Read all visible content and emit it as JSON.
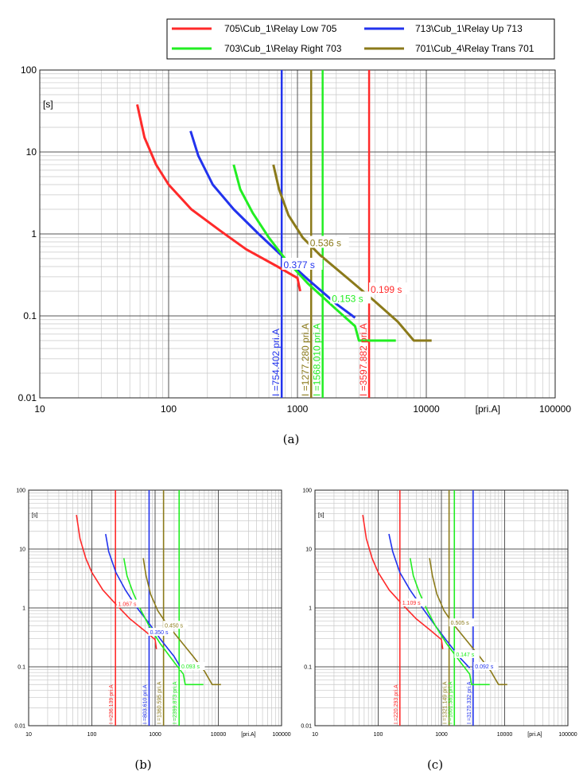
{
  "colors": {
    "red": "#ff2a2a",
    "blue": "#2233ee",
    "green": "#22ee22",
    "olive": "#8b7a1a",
    "grid_major": "#555555",
    "grid_minor": "#c8c8c8"
  },
  "chart_data": [
    {
      "type": "line",
      "caption": "(a)",
      "xscale": "log",
      "yscale": "log",
      "xlim": [
        10,
        100000
      ],
      "ylim": [
        0.01,
        100
      ],
      "xlabel": "[pri.A]",
      "ylabel": "[s]",
      "x_ticks": [
        "10",
        "100",
        "1000",
        "10000",
        "100000"
      ],
      "y_ticks": [
        "0.01",
        "0.1",
        "1",
        "10",
        "100"
      ],
      "legend_position": "top",
      "series": [
        {
          "name": "705\\Cub_1\\Relay Low 705",
          "color": "red",
          "points": [
            [
              57,
              38
            ],
            [
              65,
              15
            ],
            [
              80,
              7
            ],
            [
              100,
              4
            ],
            [
              150,
              2
            ],
            [
              250,
              1.1
            ],
            [
              400,
              0.65
            ],
            [
              700,
              0.4
            ],
            [
              1000,
              0.29
            ],
            [
              1050,
              0.2
            ]
          ]
        },
        {
          "name": "713\\Cub_1\\Relay Up 713",
          "color": "blue",
          "points": [
            [
              148,
              18
            ],
            [
              170,
              9
            ],
            [
              220,
              4
            ],
            [
              320,
              2
            ],
            [
              500,
              1
            ],
            [
              800,
              0.5
            ],
            [
              1200,
              0.28
            ],
            [
              2000,
              0.14
            ],
            [
              2800,
              0.095
            ]
          ]
        },
        {
          "name": "703\\Cub_1\\Relay Right 703",
          "color": "green",
          "points": [
            [
              320,
              7
            ],
            [
              360,
              3.5
            ],
            [
              450,
              1.8
            ],
            [
              600,
              0.9
            ],
            [
              800,
              0.5
            ],
            [
              1200,
              0.25
            ],
            [
              2000,
              0.12
            ],
            [
              2800,
              0.075
            ],
            [
              3000,
              0.05
            ],
            [
              5800,
              0.05
            ]
          ]
        },
        {
          "name": "701\\Cub_4\\Relay Trans 701",
          "color": "olive",
          "points": [
            [
              650,
              7
            ],
            [
              720,
              3.5
            ],
            [
              850,
              1.7
            ],
            [
              1100,
              0.9
            ],
            [
              1500,
              0.55
            ],
            [
              2500,
              0.28
            ],
            [
              4000,
              0.15
            ],
            [
              6000,
              0.085
            ],
            [
              8000,
              0.05
            ],
            [
              11000,
              0.05
            ]
          ]
        }
      ],
      "markers": [
        {
          "x": 754.402,
          "color": "blue",
          "label": "I =754.402 pri.A"
        },
        {
          "x": 1277.28,
          "color": "olive",
          "label": "I =1277.280 pri.A"
        },
        {
          "x": 1568.01,
          "color": "green",
          "label": "I =1568.010 pri.A"
        },
        {
          "x": 3597.882,
          "color": "red",
          "label": "I =3597.882 pri.A"
        }
      ],
      "annotations": [
        {
          "text": "0.536 s",
          "color": "olive",
          "x": 1250,
          "y": 0.74
        },
        {
          "text": "0.377 s",
          "color": "blue",
          "x": 780,
          "y": 0.4
        },
        {
          "text": "0.199 s",
          "color": "red",
          "x": 3700,
          "y": 0.2
        },
        {
          "text": "0.153 s",
          "color": "green",
          "x": 1850,
          "y": 0.155
        }
      ]
    },
    {
      "type": "line",
      "caption": "(b)",
      "xscale": "log",
      "yscale": "log",
      "xlim": [
        10,
        100000
      ],
      "ylim": [
        0.01,
        100
      ],
      "xlabel": "[pri.A]",
      "ylabel": "[s]",
      "x_ticks": [
        "10",
        "100",
        "1000",
        "10000",
        "100000"
      ],
      "y_ticks": [
        "0.01",
        "0.1",
        "1",
        "10",
        "100"
      ],
      "series": [
        {
          "color": "red",
          "points": [
            [
              57,
              38
            ],
            [
              65,
              15
            ],
            [
              80,
              7
            ],
            [
              100,
              4
            ],
            [
              150,
              2
            ],
            [
              250,
              1.1
            ],
            [
              400,
              0.65
            ],
            [
              700,
              0.4
            ],
            [
              1000,
              0.29
            ],
            [
              1050,
              0.2
            ]
          ]
        },
        {
          "color": "blue",
          "points": [
            [
              165,
              18
            ],
            [
              185,
              9
            ],
            [
              240,
              4
            ],
            [
              340,
              2
            ],
            [
              520,
              1
            ],
            [
              800,
              0.55
            ],
            [
              1200,
              0.3
            ],
            [
              2000,
              0.15
            ],
            [
              2500,
              0.1
            ]
          ]
        },
        {
          "color": "green",
          "points": [
            [
              320,
              7
            ],
            [
              360,
              3.5
            ],
            [
              450,
              1.8
            ],
            [
              600,
              0.9
            ],
            [
              800,
              0.5
            ],
            [
              1200,
              0.25
            ],
            [
              2000,
              0.12
            ],
            [
              2800,
              0.075
            ],
            [
              3000,
              0.05
            ],
            [
              5800,
              0.05
            ]
          ]
        },
        {
          "color": "olive",
          "points": [
            [
              650,
              7
            ],
            [
              720,
              3.5
            ],
            [
              850,
              1.7
            ],
            [
              1100,
              0.9
            ],
            [
              1500,
              0.55
            ],
            [
              2500,
              0.28
            ],
            [
              4000,
              0.15
            ],
            [
              6000,
              0.085
            ],
            [
              8000,
              0.05
            ],
            [
              11000,
              0.05
            ]
          ]
        }
      ],
      "markers": [
        {
          "x": 236.139,
          "color": "red",
          "label": "I =236.139 pri.A"
        },
        {
          "x": 803.61,
          "color": "blue",
          "label": "I =803.610 pri.A"
        },
        {
          "x": 1360.595,
          "color": "olive",
          "label": "I =1360.595 pri.A"
        },
        {
          "x": 2399.873,
          "color": "green",
          "label": "I =2399.873 pri.A"
        }
      ],
      "annotations": [
        {
          "text": "1.067 s",
          "color": "red",
          "x": 260,
          "y": 1.15
        },
        {
          "text": "0.350 s",
          "color": "blue",
          "x": 830,
          "y": 0.38
        },
        {
          "text": "0.450 s",
          "color": "olive",
          "x": 1420,
          "y": 0.5
        },
        {
          "text": "0.093 s",
          "color": "green",
          "x": 2600,
          "y": 0.1
        }
      ]
    },
    {
      "type": "line",
      "caption": "(c)",
      "xscale": "log",
      "yscale": "log",
      "xlim": [
        10,
        100000
      ],
      "ylim": [
        0.01,
        100
      ],
      "xlabel": "[pri.A]",
      "ylabel": "[s]",
      "x_ticks": [
        "10",
        "100",
        "1000",
        "10000",
        "100000"
      ],
      "y_ticks": [
        "0.01",
        "0.1",
        "1",
        "10",
        "100"
      ],
      "series": [
        {
          "color": "red",
          "points": [
            [
              57,
              38
            ],
            [
              65,
              15
            ],
            [
              80,
              7
            ],
            [
              100,
              4
            ],
            [
              150,
              2
            ],
            [
              250,
              1.1
            ],
            [
              400,
              0.65
            ],
            [
              700,
              0.4
            ],
            [
              1000,
              0.29
            ],
            [
              1050,
              0.2
            ]
          ]
        },
        {
          "color": "blue",
          "points": [
            [
              148,
              18
            ],
            [
              170,
              9
            ],
            [
              220,
              4
            ],
            [
              320,
              2
            ],
            [
              500,
              1
            ],
            [
              800,
              0.5
            ],
            [
              1200,
              0.28
            ],
            [
              2000,
              0.14
            ],
            [
              2800,
              0.095
            ]
          ]
        },
        {
          "color": "green",
          "points": [
            [
              320,
              7
            ],
            [
              360,
              3.5
            ],
            [
              450,
              1.8
            ],
            [
              600,
              0.9
            ],
            [
              800,
              0.5
            ],
            [
              1200,
              0.25
            ],
            [
              2000,
              0.12
            ],
            [
              2800,
              0.075
            ],
            [
              3000,
              0.05
            ],
            [
              5800,
              0.05
            ]
          ]
        },
        {
          "color": "olive",
          "points": [
            [
              650,
              7
            ],
            [
              720,
              3.5
            ],
            [
              850,
              1.7
            ],
            [
              1100,
              0.9
            ],
            [
              1500,
              0.55
            ],
            [
              2500,
              0.28
            ],
            [
              4000,
              0.15
            ],
            [
              6000,
              0.085
            ],
            [
              8000,
              0.05
            ],
            [
              11000,
              0.05
            ]
          ]
        }
      ],
      "markers": [
        {
          "x": 220.293,
          "color": "red",
          "label": "I =220.293 pri.A"
        },
        {
          "x": 1321.149,
          "color": "olive",
          "label": "I =1321.149 pri.A"
        },
        {
          "x": 1601.381,
          "color": "green",
          "label": "I =1601.381 pri.A"
        },
        {
          "x": 3170.332,
          "color": "blue",
          "label": "I =3170.332 pri.A"
        }
      ],
      "annotations": [
        {
          "text": "1.109 s",
          "color": "red",
          "x": 240,
          "y": 1.2
        },
        {
          "text": "0.505 s",
          "color": "olive",
          "x": 1400,
          "y": 0.55
        },
        {
          "text": "0.147 s",
          "color": "green",
          "x": 1700,
          "y": 0.16
        },
        {
          "text": "0.092 s",
          "color": "blue",
          "x": 3400,
          "y": 0.1
        }
      ]
    }
  ]
}
